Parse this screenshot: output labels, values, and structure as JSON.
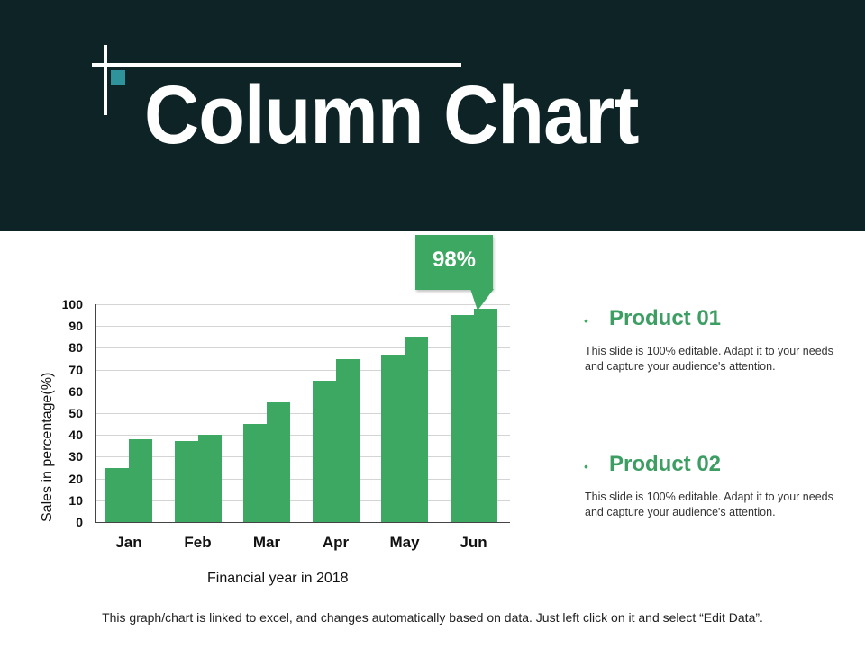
{
  "header": {
    "title": "Column Chart",
    "colors": {
      "background": "#0d2326",
      "accent_square": "#2e939b",
      "lines": "#ffffff"
    }
  },
  "chart": {
    "y_axis_label": "Sales in percentage(%)",
    "x_axis_label": "Financial year in 2018",
    "y_ticks": [
      "100",
      "90",
      "80",
      "70",
      "60",
      "50",
      "40",
      "30",
      "20",
      "10",
      "0"
    ],
    "x_ticks": [
      "Jan",
      "Feb",
      "Mar",
      "Apr",
      "May",
      "Jun"
    ],
    "callout": "98%",
    "bar_color": "#3da862"
  },
  "chart_data": {
    "type": "bar",
    "title": "Column Chart",
    "categories": [
      "Jan",
      "Feb",
      "Mar",
      "Apr",
      "May",
      "Jun"
    ],
    "series": [
      {
        "name": "Product 01",
        "values": [
          25,
          37,
          45,
          65,
          77,
          95
        ]
      },
      {
        "name": "Product 02",
        "values": [
          38,
          40,
          55,
          75,
          85,
          98
        ]
      }
    ],
    "xlabel": "Financial year in 2018",
    "ylabel": "Sales in percentage(%)",
    "ylim": [
      0,
      100
    ],
    "yticks": [
      0,
      10,
      20,
      30,
      40,
      50,
      60,
      70,
      80,
      90,
      100
    ],
    "grid": true,
    "annotations": [
      {
        "category": "Jun",
        "series": "Product 02",
        "text": "98%"
      }
    ],
    "colors": [
      "#3da862",
      "#3da862"
    ]
  },
  "products": [
    {
      "title": "Product 01",
      "description": "This slide is 100% editable. Adapt it to your needs and capture your audience's attention."
    },
    {
      "title": "Product 02",
      "description": "This slide is 100% editable. Adapt it to your needs and capture your audience's attention."
    }
  ],
  "footer": {
    "note": "This graph/chart is linked to excel, and changes automatically  based on data. Just left click on it and select “Edit Data”."
  }
}
